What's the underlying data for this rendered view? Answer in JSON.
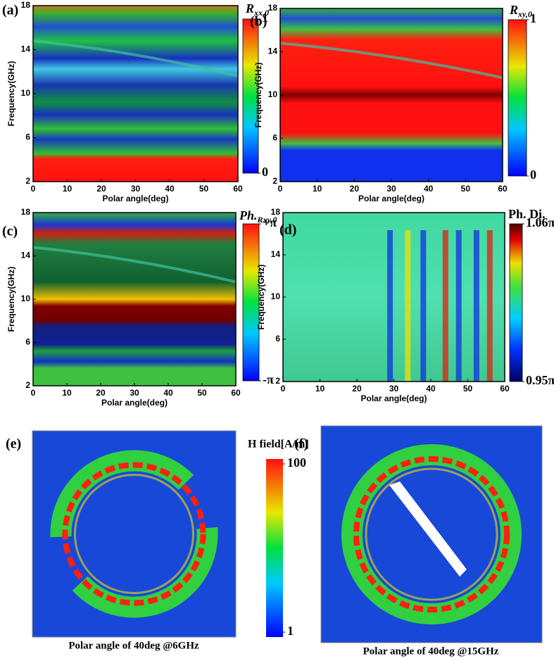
{
  "chart_data": [
    {
      "type": "heatmap",
      "panel": "(a)",
      "colorbar_title": {
        "symbol": "R",
        "subscript": "xx,0"
      },
      "xlabel": "Polar angle(deg)",
      "ylabel": "Frequency(GHz)",
      "xlim": [
        0,
        60
      ],
      "xticks": [
        0,
        10,
        20,
        30,
        40,
        50,
        60
      ],
      "ylim": [
        2,
        18
      ],
      "yticks": [
        2,
        6,
        10,
        14,
        18
      ],
      "clim": [
        0,
        1
      ],
      "cticks": [
        0,
        1
      ]
    },
    {
      "type": "heatmap",
      "panel": "(b)",
      "colorbar_title": {
        "symbol": "R",
        "subscript": "xy,0"
      },
      "xlabel": "Polar angle(deg)",
      "ylabel": "Frequency(GHz)",
      "xlim": [
        0,
        60
      ],
      "xticks": [
        0,
        10,
        20,
        30,
        40,
        50,
        60
      ],
      "ylim": [
        2,
        18
      ],
      "yticks": [
        2,
        6,
        10,
        14,
        18
      ],
      "clim": [
        0,
        1
      ],
      "cticks": [
        0,
        1
      ]
    },
    {
      "type": "heatmap",
      "panel": "(c)",
      "colorbar_title": {
        "symbol": "Ph.",
        "subscript": "Rxy,0"
      },
      "xlabel": "Polar angle(deg)",
      "ylabel": "Frequency(GHz)",
      "xlim": [
        0,
        60
      ],
      "xticks": [
        0,
        10,
        20,
        30,
        40,
        50,
        60
      ],
      "ylim": [
        2,
        18
      ],
      "yticks": [
        2,
        6,
        10,
        14,
        18
      ],
      "clim": [
        -1,
        1
      ],
      "cticks": [
        {
          "value": -1,
          "label": "-π"
        },
        {
          "value": 1,
          "label": "+π"
        }
      ]
    },
    {
      "type": "heatmap",
      "panel": "(d)",
      "colorbar_title": "Ph. Di.",
      "xlabel": "Polar angle(deg)",
      "ylabel": "Frequency(GHz)",
      "xlim": [
        0,
        60
      ],
      "xticks": [
        0,
        10,
        20,
        30,
        40,
        50,
        60
      ],
      "ylim": [
        2,
        18
      ],
      "yticks": [
        2,
        6,
        10,
        14,
        18
      ],
      "clim": [
        0.95,
        1.06
      ],
      "cticks": [
        {
          "value": 0.95,
          "label": "0.95π"
        },
        {
          "value": 1.06,
          "label": "1.06π"
        }
      ]
    }
  ],
  "field_maps": {
    "colorbar_title": "H field[A/m]",
    "clim": [
      1,
      100
    ],
    "cticks": [
      1,
      100
    ],
    "log_scale": true,
    "panels": [
      {
        "panel": "(e)",
        "caption": "Polar angle of 40deg @6GHz"
      },
      {
        "panel": "(f)",
        "caption": "Polar angle of 40deg @15GHz"
      }
    ]
  }
}
